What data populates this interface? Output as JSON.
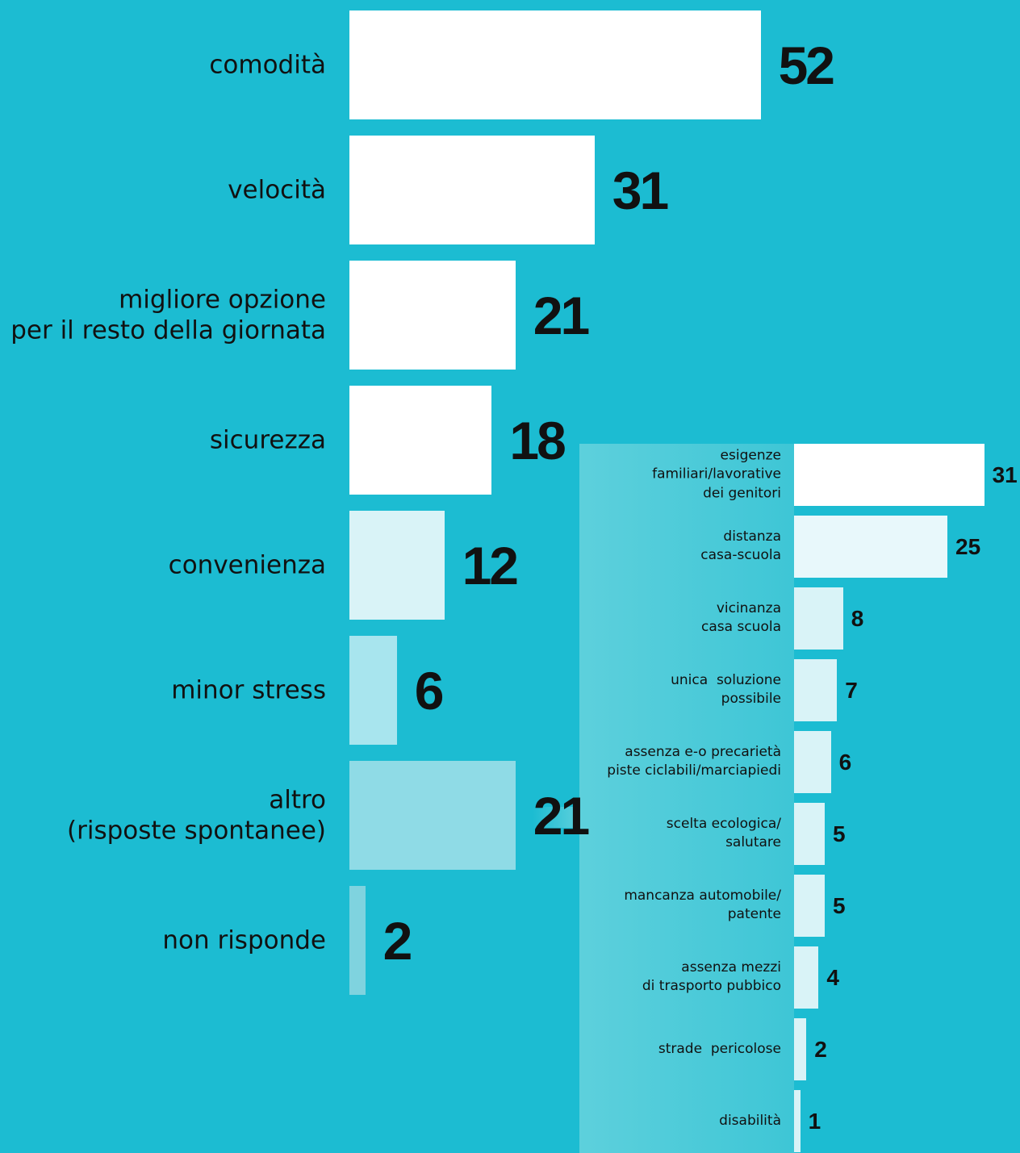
{
  "chart_data": [
    {
      "type": "bar",
      "categories": [
        "comodità",
        "velocità",
        "migliore opzione\nper il resto della giornata",
        "sicurezza",
        "convenienza",
        "minor stress",
        "altro\n(risposte spontanee)",
        "non risponde"
      ],
      "values": [
        52,
        31,
        21,
        18,
        12,
        6,
        21,
        2
      ],
      "colors": [
        "#ffffff",
        "#ffffff",
        "#ffffff",
        "#ffffff",
        "#d9f3f7",
        "#a8e5ee",
        "#8fdbe6",
        "#7fd3df"
      ]
    },
    {
      "type": "bar",
      "categories": [
        "esigenze\nfamiliari/lavorative\ndei genitori",
        "distanza\ncasa-scuola",
        "vicinanza\ncasa scuola",
        "unica  soluzione\npossibile",
        "assenza e-o precarietà\npiste ciclabili/marciapiedi",
        "scelta ecologica/\nsalutare",
        "mancanza automobile/\npatente",
        "assenza mezzi\ndi trasporto pubbico",
        "strade  pericolose",
        "disabilità"
      ],
      "values": [
        31,
        25,
        8,
        7,
        6,
        5,
        5,
        4,
        2,
        1
      ],
      "colors": [
        "#ffffff",
        "#e8f8fb",
        "#d9f3f7",
        "#d9f3f7",
        "#d9f3f7",
        "#d9f3f7",
        "#d9f3f7",
        "#d9f3f7",
        "#d9f3f7",
        "#d9f3f7"
      ]
    }
  ]
}
